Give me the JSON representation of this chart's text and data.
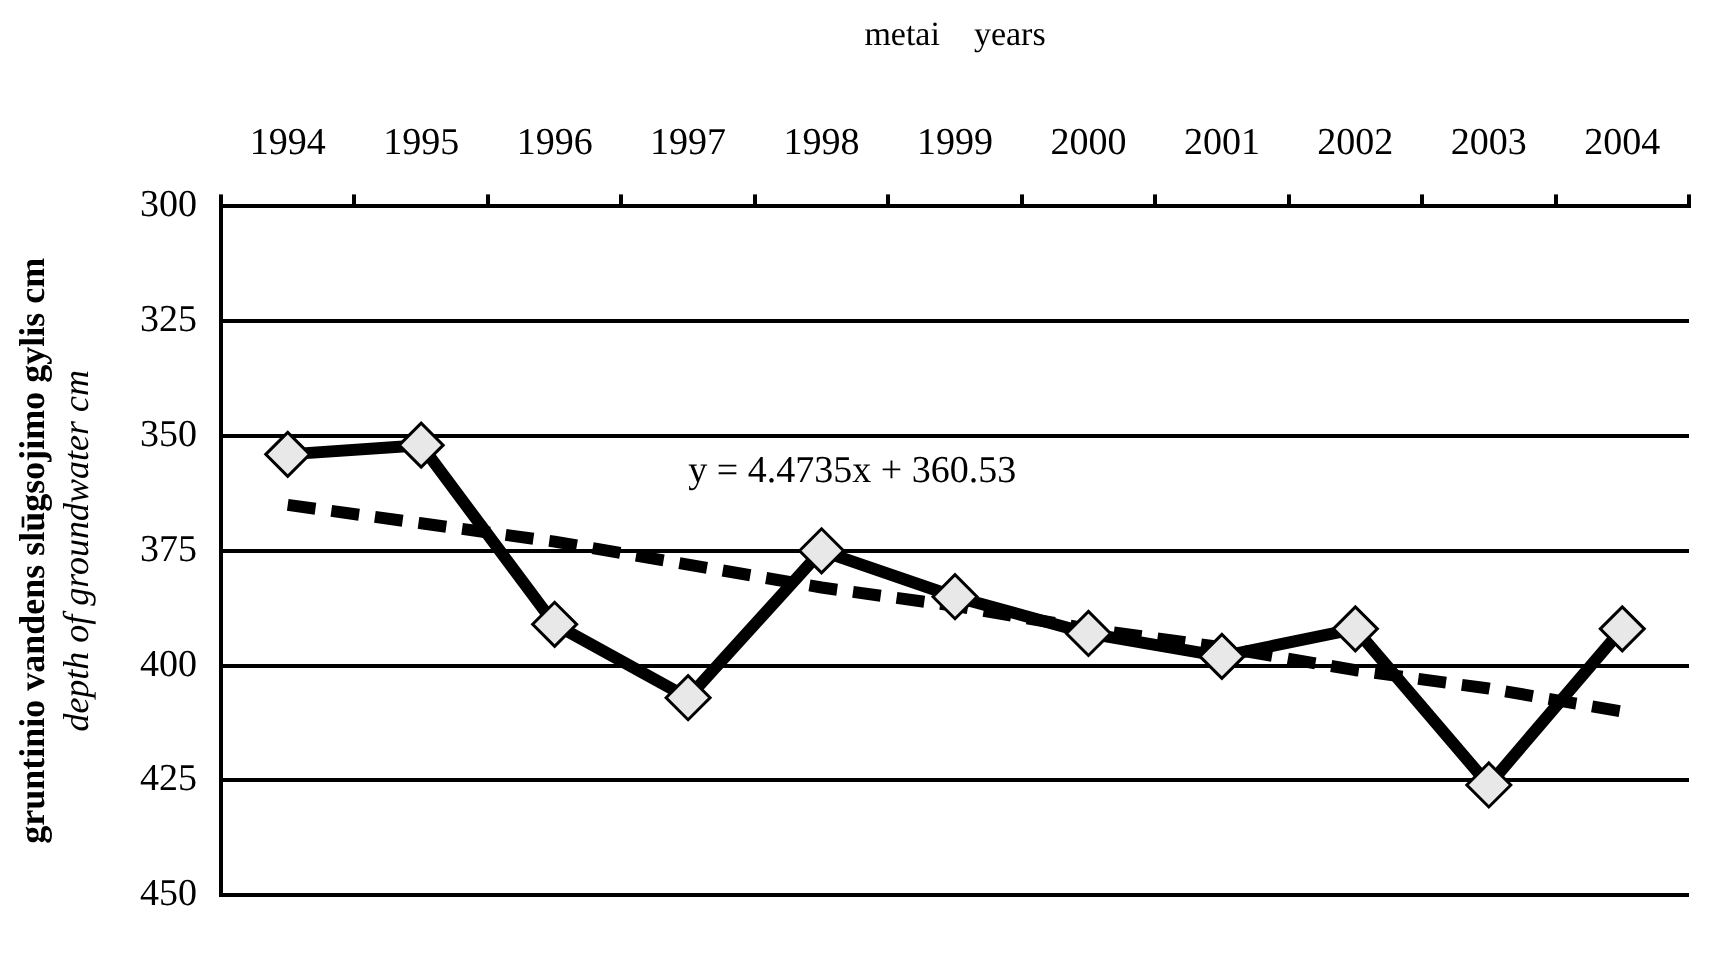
{
  "chart_data": {
    "type": "line",
    "xlabel": "metai    years",
    "ylabel": "gruntinio vandens slūgsojimo gylis cm\ndepth of groundwater cm",
    "categories": [
      "1994",
      "1995",
      "1996",
      "1997",
      "1998",
      "1999",
      "2000",
      "2001",
      "2002",
      "2003",
      "2004"
    ],
    "series": [
      {
        "color": "#000000",
        "marker": "diamond",
        "line_style": "solid",
        "values": [
          354,
          352,
          391,
          407,
          375,
          385,
          393,
          398,
          392,
          426,
          392
        ]
      },
      {
        "color": "#000000",
        "marker": "none",
        "line_style": "dashed",
        "values": [
          365,
          369,
          373,
          378,
          383,
          387,
          392,
          396,
          401,
          405,
          410
        ]
      }
    ],
    "annotations": [
      "y = 4.4735x + 360.53"
    ],
    "ylim": [
      450,
      300
    ],
    "yticks": [
      300,
      325,
      350,
      375,
      400,
      425,
      450
    ],
    "grid": "y",
    "legend": false
  }
}
